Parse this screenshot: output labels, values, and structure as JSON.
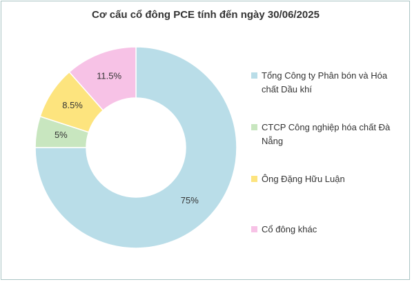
{
  "chart_data": {
    "type": "donut",
    "title": "Cơ cấu cổ đông PCE tính đến ngày 30/06/2025",
    "categories": [
      "Tổng Công ty Phân bón và Hóa chất Dầu khí",
      "CTCP Công nghiệp hóa chất Đà Nẵng",
      "Ông Đặng Hữu Luận",
      "Cổ đông khác"
    ],
    "values": [
      75,
      5,
      8.5,
      11.5
    ],
    "value_labels": [
      "75%",
      "5%",
      "8.5%",
      "11.5%"
    ],
    "colors": [
      "#b9dde8",
      "#c8e6bf",
      "#fde47e",
      "#f7c2e6"
    ]
  }
}
